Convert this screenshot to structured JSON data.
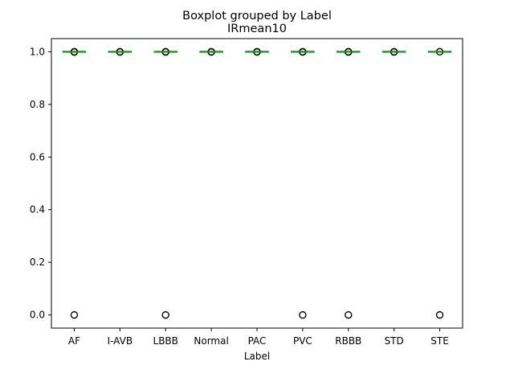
{
  "chart_data": {
    "type": "boxplot",
    "suptitle": "Boxplot grouped by Label",
    "title": "IRmean10",
    "xlabel": "Label",
    "ylabel": "",
    "categories": [
      "AF",
      "I-AVB",
      "LBBB",
      "Normal",
      "PAC",
      "PVC",
      "RBBB",
      "STD",
      "STE"
    ],
    "ylim": [
      -0.05,
      1.05
    ],
    "yticks": [
      "0.0",
      "0.2",
      "0.4",
      "0.6",
      "0.8",
      "1.0"
    ],
    "ytick_values": [
      0.0,
      0.2,
      0.4,
      0.6,
      0.8,
      1.0
    ],
    "grid": false,
    "boxes": [
      {
        "label": "AF",
        "q1": 1.0,
        "median": 1.0,
        "q3": 1.0,
        "whisker_low": 1.0,
        "whisker_high": 1.0,
        "outliers": [
          0.0,
          0.999,
          1.0
        ]
      },
      {
        "label": "I-AVB",
        "q1": 1.0,
        "median": 1.0,
        "q3": 1.0,
        "whisker_low": 1.0,
        "whisker_high": 1.0,
        "outliers": [
          0.999,
          1.0
        ]
      },
      {
        "label": "LBBB",
        "q1": 1.0,
        "median": 1.0,
        "q3": 1.0,
        "whisker_low": 1.0,
        "whisker_high": 1.0,
        "outliers": [
          0.0,
          0.999,
          1.0
        ]
      },
      {
        "label": "Normal",
        "q1": 1.0,
        "median": 1.0,
        "q3": 1.0,
        "whisker_low": 1.0,
        "whisker_high": 1.0,
        "outliers": [
          0.999,
          1.0
        ]
      },
      {
        "label": "PAC",
        "q1": 1.0,
        "median": 1.0,
        "q3": 1.0,
        "whisker_low": 1.0,
        "whisker_high": 1.0,
        "outliers": [
          0.999,
          1.0
        ]
      },
      {
        "label": "PVC",
        "q1": 1.0,
        "median": 1.0,
        "q3": 1.0,
        "whisker_low": 1.0,
        "whisker_high": 1.0,
        "outliers": [
          0.0,
          0.999,
          1.0
        ]
      },
      {
        "label": "RBBB",
        "q1": 1.0,
        "median": 1.0,
        "q3": 1.0,
        "whisker_low": 1.0,
        "whisker_high": 1.0,
        "outliers": [
          0.0,
          0.999,
          1.0
        ]
      },
      {
        "label": "STD",
        "q1": 1.0,
        "median": 1.0,
        "q3": 1.0,
        "whisker_low": 1.0,
        "whisker_high": 1.0,
        "outliers": [
          0.999,
          1.0
        ]
      },
      {
        "label": "STE",
        "q1": 1.0,
        "median": 1.0,
        "q3": 1.0,
        "whisker_low": 1.0,
        "whisker_high": 1.0,
        "outliers": [
          0.0,
          1.0
        ]
      }
    ],
    "colors": {
      "box": "#1f77b4",
      "median": "#2ca02c",
      "whisker": "#1f77b4",
      "outlier": "#000000"
    }
  }
}
